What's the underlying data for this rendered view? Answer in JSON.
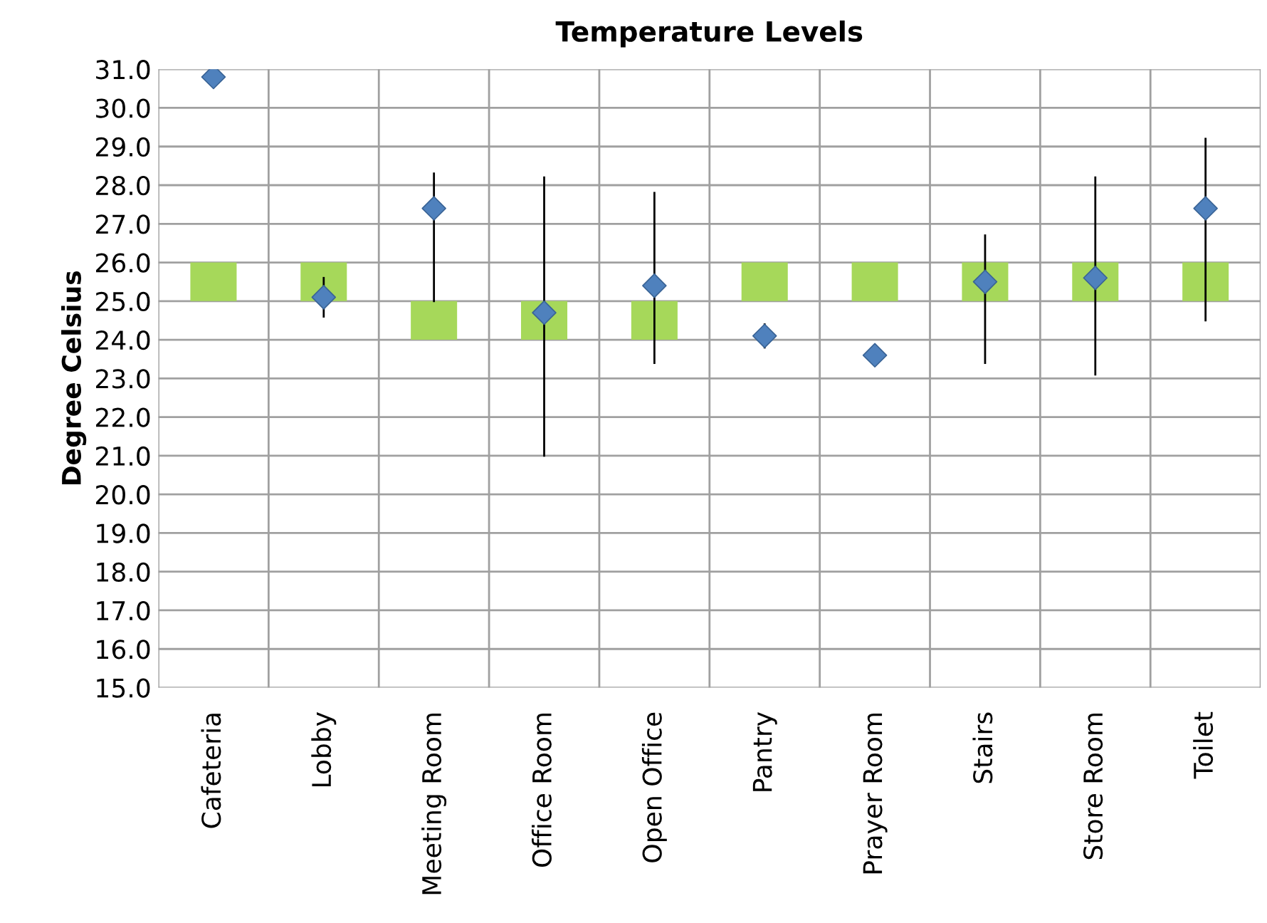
{
  "chart_data": {
    "type": "bar",
    "title": "Temperature Levels",
    "ylabel": "Degree Celsius",
    "categories": [
      "Cafeteria",
      "Lobby",
      "Meeting Room",
      "Office Room",
      "Open Office",
      "Pantry",
      "Prayer Room",
      "Stairs",
      "Store Room",
      "Toilet"
    ],
    "series": [
      {
        "color": "#a6d85a",
        "base": [
          25,
          25,
          24,
          24,
          24,
          25,
          25,
          25,
          25,
          25
        ],
        "values": [
          1,
          1,
          1,
          1,
          1,
          1,
          1,
          1,
          1,
          1
        ]
      },
      {
        "type": "scatter",
        "color": "#4f81bd",
        "marker": "diamond",
        "values": [
          30.8,
          25.1,
          27.4,
          24.7,
          25.4,
          24.1,
          23.6,
          25.5,
          25.6,
          27.4
        ],
        "errors": [
          null,
          [
            24.6,
            25.6
          ],
          [
            25.0,
            28.3
          ],
          [
            21.0,
            28.2
          ],
          [
            23.4,
            27.8
          ],
          [
            23.8,
            24.4
          ],
          null,
          [
            23.4,
            26.7
          ],
          [
            23.1,
            28.2
          ],
          [
            24.5,
            29.2
          ]
        ]
      }
    ],
    "ylim": [
      15,
      31
    ],
    "yticks": [
      {
        "value": 15,
        "label": "15.0"
      },
      {
        "value": 16,
        "label": "16.0"
      },
      {
        "value": 17,
        "label": "17.0"
      },
      {
        "value": 18,
        "label": "18.0"
      },
      {
        "value": 19,
        "label": "19.0"
      },
      {
        "value": 20,
        "label": "20.0"
      },
      {
        "value": 21,
        "label": "21.0"
      },
      {
        "value": 22,
        "label": "22.0"
      },
      {
        "value": 23,
        "label": "23.0"
      },
      {
        "value": 24,
        "label": "24.0"
      },
      {
        "value": 25,
        "label": "25.0"
      },
      {
        "value": 26,
        "label": "26.0"
      },
      {
        "value": 27,
        "label": "27.0"
      },
      {
        "value": 28,
        "label": "28.0"
      },
      {
        "value": 29,
        "label": "29.0"
      },
      {
        "value": 30,
        "label": "30.0"
      },
      {
        "value": 31,
        "label": "31.0"
      }
    ],
    "grid": true
  }
}
